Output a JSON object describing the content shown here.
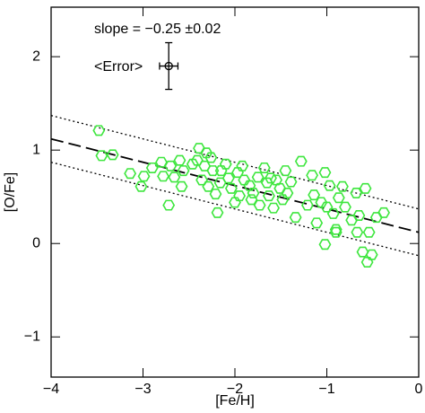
{
  "chart_data": {
    "type": "scatter",
    "x_label": "[Fe/H]",
    "y_label": "[O/Fe]",
    "annotation": "slope = −0.25 ±0.02",
    "xlim": [
      -4,
      0
    ],
    "ylim": [
      -1.43,
      2.53
    ],
    "xticks": [
      {
        "value": -4,
        "label": "−4"
      },
      {
        "value": -3,
        "label": "−3"
      },
      {
        "value": -2,
        "label": "−2"
      },
      {
        "value": -1,
        "label": "−1"
      },
      0
    ],
    "yticks": [
      {
        "value": -1,
        "label": "−1"
      },
      0,
      1,
      2
    ],
    "marker": "hexagon",
    "color": "#3ee63e",
    "x": [
      -3.48,
      -3.45,
      -3.33,
      -3.14,
      -3.02,
      -2.99,
      -2.9,
      -2.8,
      -2.78,
      -2.72,
      -2.7,
      -2.66,
      -2.6,
      -2.56,
      -2.58,
      -2.46,
      -2.39,
      -2.36,
      -2.31,
      -2.33,
      -2.29,
      -2.24,
      -2.21,
      -2.19,
      -2.16,
      -2.1,
      -2.07,
      -2.04,
      -2.0,
      -1.97,
      -1.92,
      -1.9,
      -1.84,
      -1.8,
      -1.75,
      -1.73,
      -1.68,
      -1.65,
      -1.63,
      -1.58,
      -1.55,
      -1.51,
      -1.45,
      -1.48,
      -1.43,
      -1.34,
      -1.28,
      -1.21,
      -1.16,
      -1.14,
      -1.11,
      -1.06,
      -1.02,
      -1.0,
      -0.97,
      -0.93,
      -0.9,
      -0.87,
      -0.83,
      -0.8,
      -1.02,
      -0.9,
      -0.73,
      -0.68,
      -0.65,
      -0.61,
      -0.58,
      -0.56,
      -0.54,
      -0.51,
      -0.46,
      -0.38,
      -0.67,
      -2.41,
      -2.26,
      -2.15,
      -1.82,
      -1.61,
      -1.39,
      -1.95
    ],
    "values": [
      1.21,
      0.94,
      0.95,
      0.75,
      0.61,
      0.72,
      0.81,
      0.87,
      0.72,
      0.41,
      0.83,
      0.71,
      0.89,
      0.78,
      0.61,
      0.85,
      1.02,
      0.68,
      0.97,
      0.83,
      0.61,
      0.78,
      0.53,
      0.33,
      0.65,
      0.85,
      0.7,
      0.59,
      0.44,
      0.76,
      0.83,
      0.68,
      0.62,
      0.54,
      0.71,
      0.41,
      0.81,
      0.65,
      0.51,
      0.38,
      0.68,
      0.59,
      0.78,
      0.47,
      0.54,
      0.28,
      0.88,
      0.41,
      0.73,
      0.52,
      0.22,
      0.44,
      0.76,
      0.39,
      0.62,
      0.32,
      0.15,
      0.49,
      0.61,
      0.39,
      -0.01,
      0.12,
      0.25,
      0.54,
      0.3,
      -0.09,
      0.59,
      -0.2,
      0.12,
      -0.12,
      0.28,
      0.33,
      0.12,
      0.89,
      0.92,
      0.78,
      0.47,
      0.7,
      0.66,
      0.51
    ],
    "lines": [
      {
        "style": "dashed",
        "x": [
          -4,
          0
        ],
        "values": [
          1.12,
          0.12
        ]
      },
      {
        "style": "dotted",
        "x": [
          -4,
          0
        ],
        "values": [
          1.37,
          0.37
        ]
      },
      {
        "style": "dotted",
        "x": [
          -4,
          0
        ],
        "values": [
          0.87,
          -0.13
        ]
      }
    ],
    "error_marker": {
      "label": "<Error>",
      "x": -2.72,
      "y": 1.9,
      "xerr": 0.1,
      "yerr": 0.25
    }
  }
}
